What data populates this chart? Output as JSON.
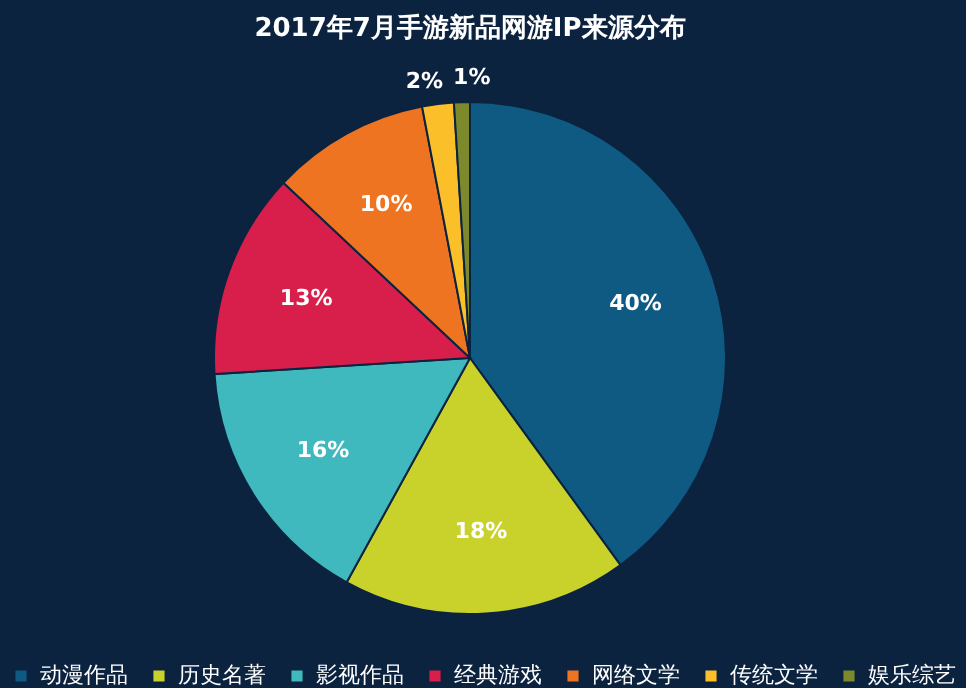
{
  "chart_data": {
    "type": "pie",
    "title": "2017年7月手游新品网游IP来源分布",
    "categories": [
      "动漫作品",
      "历史名著",
      "影视作品",
      "经典游戏",
      "网络文学",
      "传统文学",
      "娱乐综艺"
    ],
    "values": [
      40,
      18,
      16,
      13,
      10,
      2,
      1
    ],
    "colors": [
      "#0f5a82",
      "#c9d22a",
      "#3fb8be",
      "#d81e4b",
      "#ee7422",
      "#fbbf2a",
      "#7d8a2c"
    ],
    "value_labels": [
      "40%",
      "18%",
      "16%",
      "13%",
      "10%",
      "2%",
      "1%"
    ],
    "legend": "bottom"
  }
}
